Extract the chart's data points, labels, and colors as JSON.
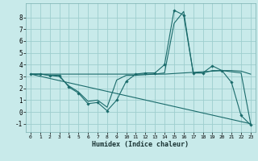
{
  "xlabel": "Humidex (Indice chaleur)",
  "bg_color": "#c8eaea",
  "grid_color": "#9ecece",
  "line_color": "#1a6b6b",
  "x_ticks": [
    0,
    1,
    2,
    3,
    4,
    5,
    6,
    7,
    8,
    9,
    10,
    11,
    12,
    13,
    14,
    15,
    16,
    17,
    18,
    19,
    20,
    21,
    22,
    23
  ],
  "y_ticks": [
    -1,
    0,
    1,
    2,
    3,
    4,
    5,
    6,
    7,
    8
  ],
  "xlim": [
    -0.5,
    23.5
  ],
  "ylim": [
    -1.7,
    9.2
  ],
  "series": [
    {
      "x": [
        0,
        1,
        2,
        3,
        4,
        5,
        6,
        7,
        8,
        9,
        10,
        11,
        12,
        13,
        14,
        15,
        16,
        17,
        18,
        19,
        20,
        21,
        22,
        23
      ],
      "y": [
        3.2,
        3.2,
        3.1,
        3.1,
        2.1,
        1.6,
        0.7,
        0.8,
        0.1,
        1.0,
        2.6,
        3.2,
        3.3,
        3.3,
        4.0,
        8.6,
        8.2,
        3.3,
        3.3,
        3.9,
        3.5,
        2.5,
        -0.3,
        -1.1
      ],
      "marker": true
    },
    {
      "x": [
        0,
        1,
        2,
        3,
        4,
        5,
        6,
        7,
        8,
        9,
        10,
        11,
        12,
        13,
        14,
        15,
        16,
        17,
        18,
        19,
        20,
        21,
        22,
        23
      ],
      "y": [
        3.2,
        3.2,
        3.1,
        3.0,
        2.2,
        1.7,
        0.9,
        1.0,
        0.4,
        2.7,
        3.1,
        3.1,
        3.15,
        3.2,
        3.3,
        7.5,
        8.5,
        3.3,
        3.3,
        3.5,
        3.5,
        3.4,
        3.3,
        -1.0
      ],
      "marker": false
    },
    {
      "x": [
        0,
        23
      ],
      "y": [
        3.2,
        -1.0
      ],
      "marker": false
    },
    {
      "x": [
        0,
        1,
        2,
        3,
        4,
        5,
        6,
        7,
        8,
        9,
        10,
        11,
        12,
        13,
        14,
        15,
        16,
        17,
        18,
        19,
        20,
        21,
        22,
        23
      ],
      "y": [
        3.2,
        3.2,
        3.2,
        3.2,
        3.2,
        3.2,
        3.2,
        3.2,
        3.2,
        3.2,
        3.2,
        3.2,
        3.2,
        3.2,
        3.2,
        3.25,
        3.3,
        3.35,
        3.4,
        3.45,
        3.5,
        3.5,
        3.45,
        3.2
      ],
      "marker": false
    }
  ]
}
